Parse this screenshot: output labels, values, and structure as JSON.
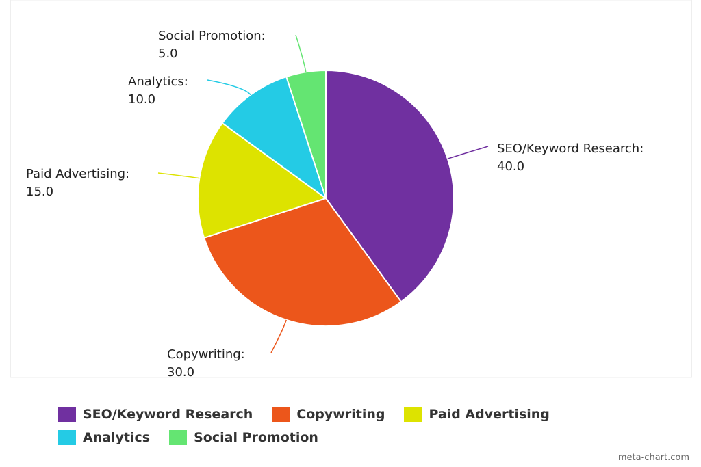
{
  "chart_data": {
    "type": "pie",
    "title": "",
    "categories": [
      "SEO/Keyword Research",
      "Copywriting",
      "Paid Advertising",
      "Analytics",
      "Social Promotion"
    ],
    "values": [
      40.0,
      30.0,
      15.0,
      10.0,
      5.0
    ],
    "value_labels": [
      "40.0",
      "30.0",
      "15.0",
      "10.0",
      "5.0"
    ],
    "label_texts": [
      "SEO/Keyword Research:",
      "Copywriting:",
      "Paid Advertising:",
      "Analytics:",
      "Social Promotion:"
    ],
    "colors": [
      "#7030a0",
      "#ec561b",
      "#dde300",
      "#24cbe5",
      "#64e572"
    ],
    "legend_placement": "bottom"
  },
  "legend": {
    "items": [
      {
        "label": "SEO/Keyword Research",
        "color": "#7030a0"
      },
      {
        "label": "Copywriting",
        "color": "#ec561b"
      },
      {
        "label": "Paid Advertising",
        "color": "#dde300"
      },
      {
        "label": "Analytics",
        "color": "#24cbe5"
      },
      {
        "label": "Social Promotion",
        "color": "#64e572"
      }
    ]
  },
  "credit": "meta-chart.com"
}
